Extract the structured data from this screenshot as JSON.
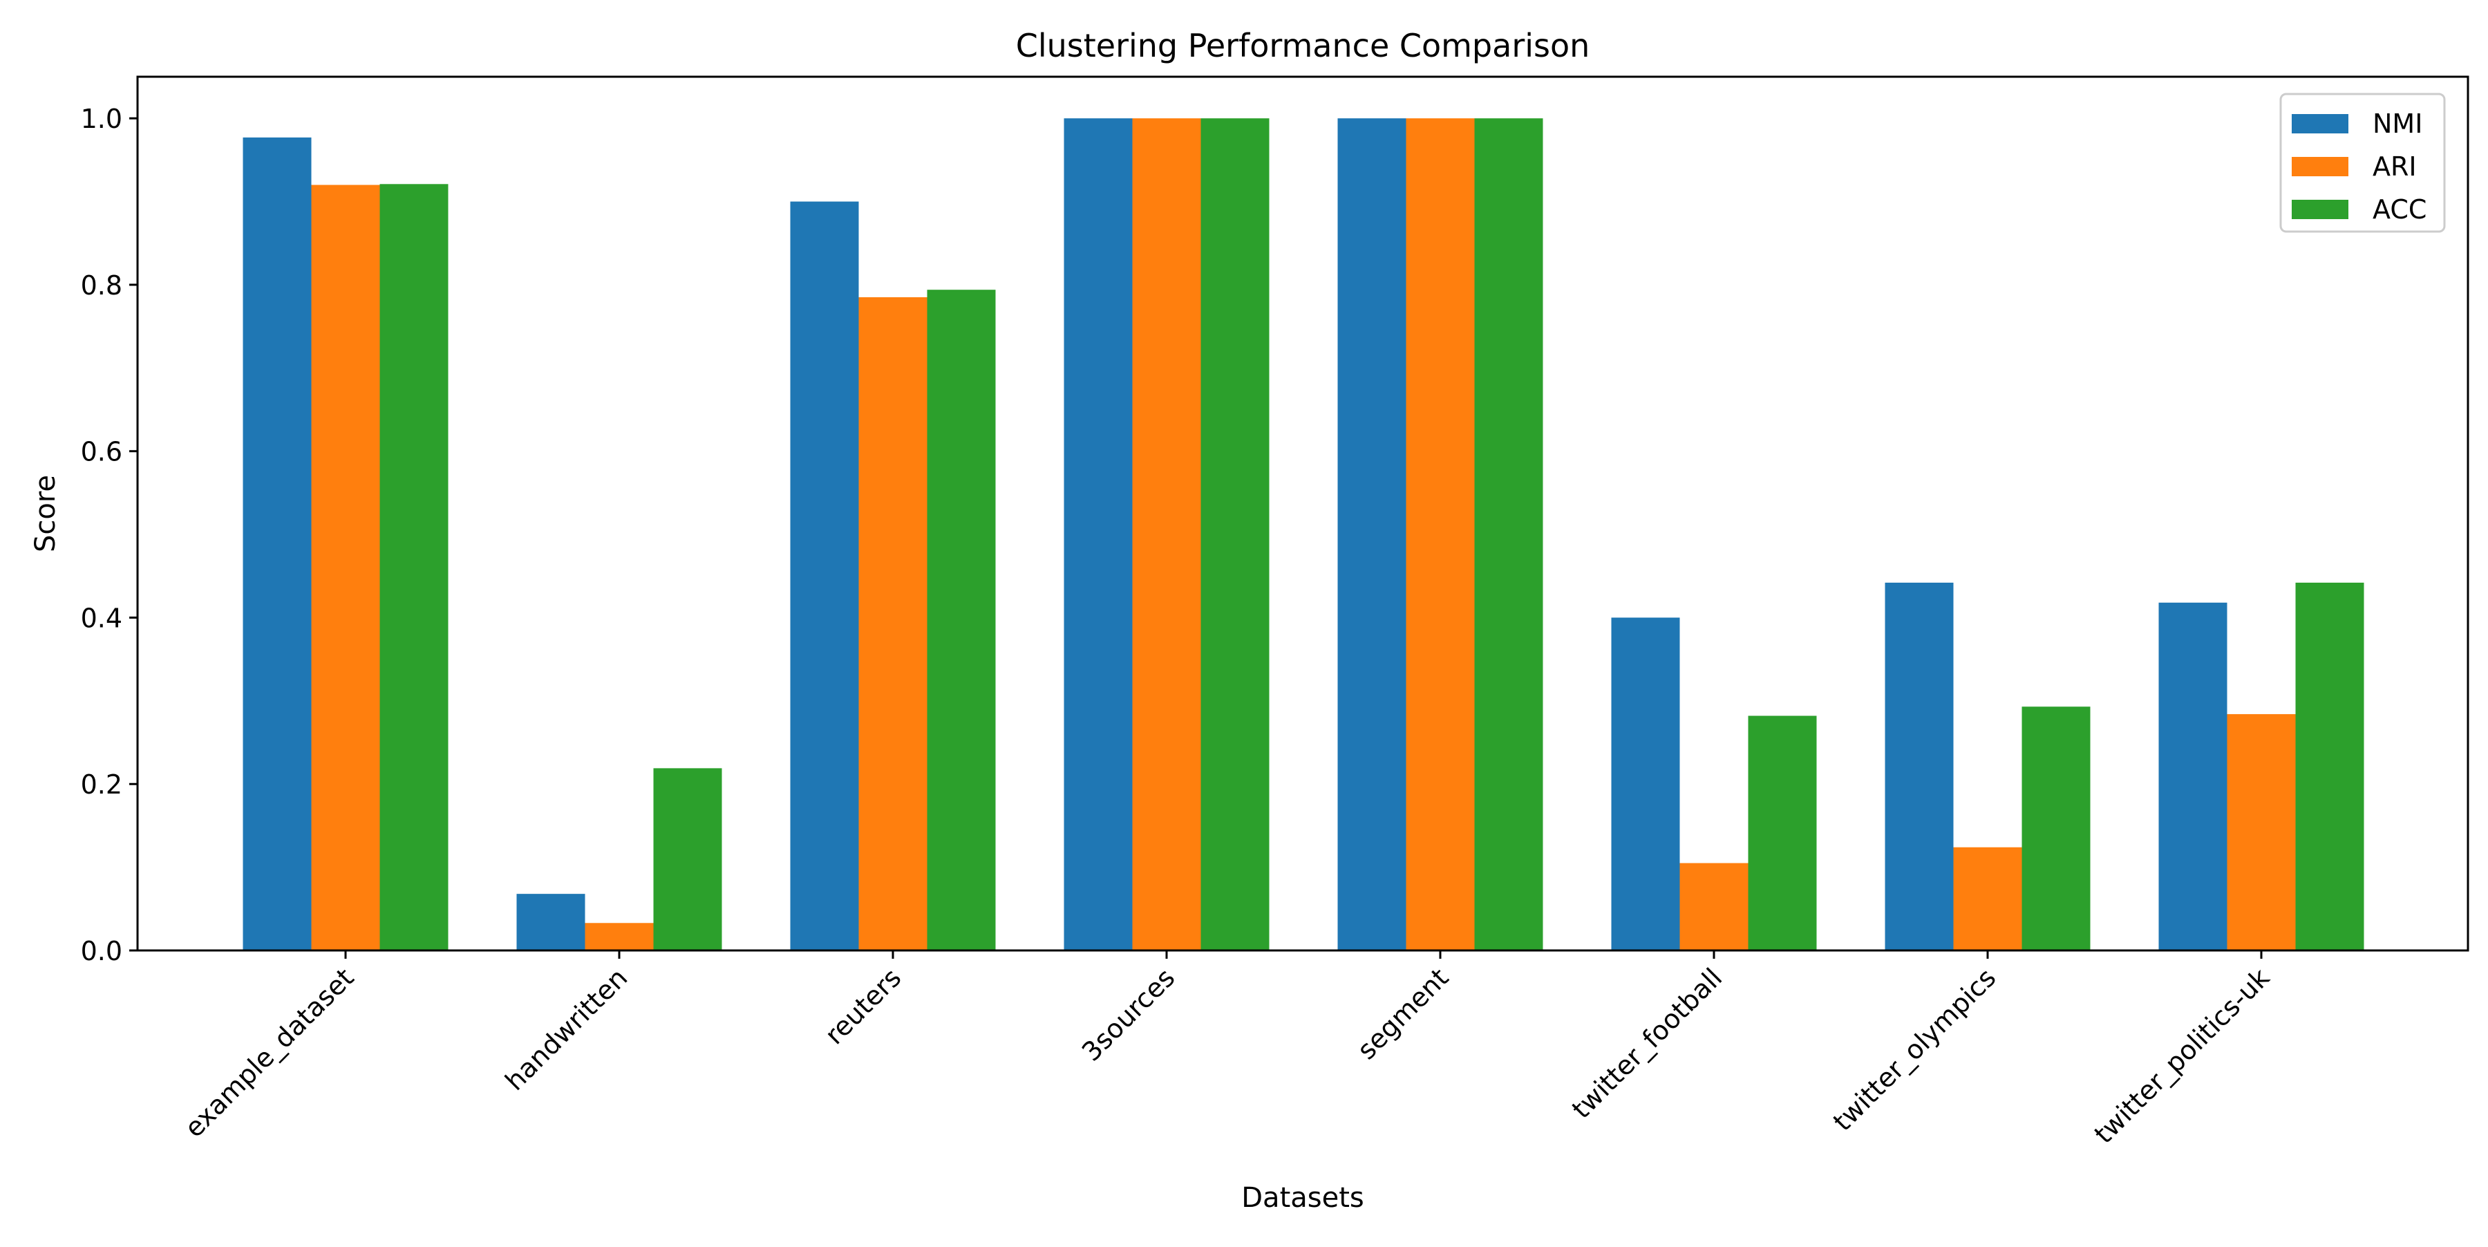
{
  "chart_data": {
    "type": "bar",
    "title": "Clustering Performance Comparison",
    "xlabel": "Datasets",
    "ylabel": "Score",
    "ylim": [
      0,
      1.05
    ],
    "yticks": [
      "0.0",
      "0.2",
      "0.4",
      "0.6",
      "0.8",
      "1.0"
    ],
    "ytick_values": [
      0,
      0.2,
      0.4,
      0.6,
      0.8,
      1.0
    ],
    "categories": [
      "example_dataset",
      "handwritten",
      "reuters",
      "3sources",
      "segment",
      "twitter_football",
      "twitter_olympics",
      "twitter_politics-uk"
    ],
    "series": [
      {
        "name": "NMI",
        "color": "#1f77b4",
        "values": [
          0.977,
          0.068,
          0.9,
          1.0,
          1.0,
          0.4,
          0.442,
          0.418
        ]
      },
      {
        "name": "ARI",
        "color": "#ff7f0e",
        "values": [
          0.92,
          0.033,
          0.785,
          1.0,
          1.0,
          0.105,
          0.124,
          0.284
        ]
      },
      {
        "name": "ACC",
        "color": "#2ca02c",
        "values": [
          0.921,
          0.219,
          0.794,
          1.0,
          1.0,
          0.282,
          0.293,
          0.442
        ]
      }
    ],
    "legend_position": "upper-right",
    "grid": false
  }
}
